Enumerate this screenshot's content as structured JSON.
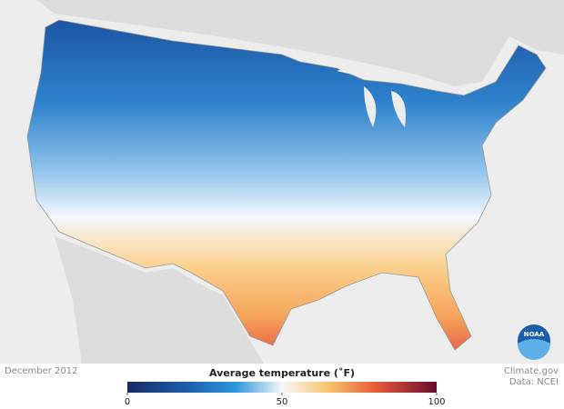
{
  "map": {
    "date": "December 2012",
    "logo": "NOAA"
  },
  "legend": {
    "title": "Average temperature (˚F)",
    "range": [
      0,
      100
    ],
    "ticks": [
      0,
      50,
      100
    ]
  },
  "credits": {
    "source": "Climate.gov",
    "data": "Data: NCEI"
  }
}
